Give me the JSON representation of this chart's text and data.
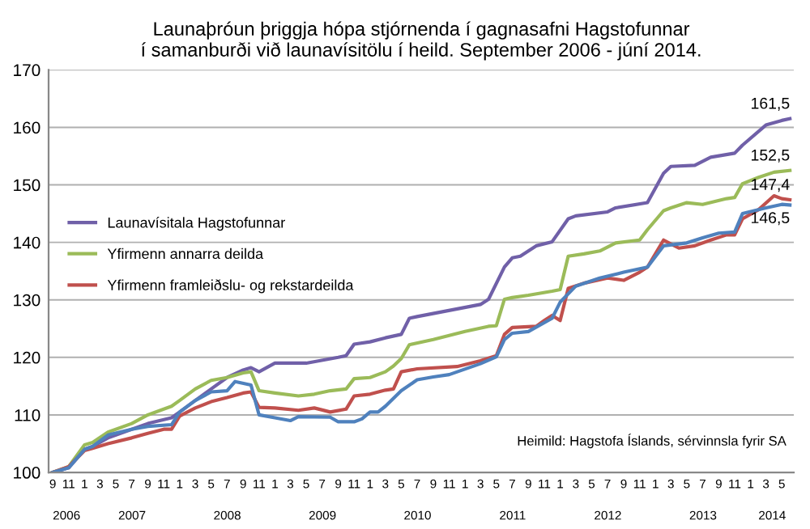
{
  "chart_data": {
    "type": "line",
    "title": "Launaþróun þriggja hópa stjórnenda í gagnasafni Hagstofunnar\ní samanburði við launavísitölu í heild. September 2006 - júní 2014.",
    "xlim": [
      "2006-08-16",
      "2014-06-16"
    ],
    "xticks": [
      {
        "value": "2006-09",
        "label": "9"
      },
      {
        "value": "2006-11",
        "label": "11"
      },
      {
        "value": "2007-01",
        "label": "1"
      },
      {
        "value": "2007-03",
        "label": "3"
      },
      {
        "value": "2007-05",
        "label": "5"
      },
      {
        "value": "2007-07",
        "label": "7"
      },
      {
        "value": "2007-09",
        "label": "9"
      },
      {
        "value": "2007-11",
        "label": "11"
      },
      {
        "value": "2008-01",
        "label": "1"
      },
      {
        "value": "2008-03",
        "label": "3"
      },
      {
        "value": "2008-05",
        "label": "5"
      },
      {
        "value": "2008-07",
        "label": "7"
      },
      {
        "value": "2008-09",
        "label": "9"
      },
      {
        "value": "2008-11",
        "label": "11"
      },
      {
        "value": "2009-01",
        "label": "1"
      },
      {
        "value": "2009-03",
        "label": "3"
      },
      {
        "value": "2009-05",
        "label": "5"
      },
      {
        "value": "2009-07",
        "label": "7"
      },
      {
        "value": "2009-09",
        "label": "9"
      },
      {
        "value": "2009-11",
        "label": "11"
      },
      {
        "value": "2010-01",
        "label": "1"
      },
      {
        "value": "2010-03",
        "label": "3"
      },
      {
        "value": "2010-05",
        "label": "5"
      },
      {
        "value": "2010-07",
        "label": "7"
      },
      {
        "value": "2010-09",
        "label": "9"
      },
      {
        "value": "2010-11",
        "label": "11"
      },
      {
        "value": "2011-01",
        "label": "1"
      },
      {
        "value": "2011-03",
        "label": "3"
      },
      {
        "value": "2011-05",
        "label": "5"
      },
      {
        "value": "2011-07",
        "label": "7"
      },
      {
        "value": "2011-09",
        "label": "9"
      },
      {
        "value": "2011-11",
        "label": "11"
      },
      {
        "value": "2012-01",
        "label": "1"
      },
      {
        "value": "2012-03",
        "label": "3"
      },
      {
        "value": "2012-05",
        "label": "5"
      },
      {
        "value": "2012-07",
        "label": "7"
      },
      {
        "value": "2012-09",
        "label": "9"
      },
      {
        "value": "2012-11",
        "label": "11"
      },
      {
        "value": "2013-01",
        "label": "1"
      },
      {
        "value": "2013-03",
        "label": "3"
      },
      {
        "value": "2013-05",
        "label": "5"
      },
      {
        "value": "2013-07",
        "label": "7"
      },
      {
        "value": "2013-09",
        "label": "9"
      },
      {
        "value": "2013-11",
        "label": "11"
      },
      {
        "value": "2014-01",
        "label": "1"
      },
      {
        "value": "2014-03",
        "label": "3"
      },
      {
        "value": "2014-05",
        "label": "5"
      }
    ],
    "ylim": [
      100,
      170
    ],
    "yticks": [
      100,
      110,
      120,
      130,
      140,
      150,
      160,
      170
    ],
    "grid": "y",
    "legend": "left",
    "series": [
      {
        "name": "Launavísitala Hagstofunnar",
        "color": "#7060a8",
        "x": [
          "2006-09",
          "2006-11",
          "2007-01",
          "2007-02",
          "2007-04",
          "2007-07",
          "2007-09",
          "2007-12",
          "2008-01",
          "2008-03",
          "2008-05",
          "2008-07",
          "2008-09",
          "2008-10",
          "2008-11",
          "2009-01",
          "2009-05",
          "2009-09",
          "2009-10",
          "2009-11",
          "2010-01",
          "2010-03",
          "2010-05",
          "2010-06",
          "2010-07",
          "2011-03",
          "2011-04",
          "2011-06",
          "2011-07",
          "2011-08",
          "2011-10",
          "2011-12",
          "2012-02",
          "2012-03",
          "2012-07",
          "2012-08",
          "2012-12",
          "2013-02",
          "2013-03",
          "2013-06",
          "2013-08",
          "2013-11",
          "2013-12",
          "2014-03",
          "2014-05",
          "2014-06"
        ],
        "values": [
          100,
          100.8,
          104,
          104.5,
          106,
          107.5,
          108.5,
          109.5,
          110.5,
          112.5,
          114.5,
          116.5,
          117.8,
          118.2,
          117.5,
          119,
          119,
          120,
          120.3,
          122.3,
          122.7,
          123.4,
          124,
          126.8,
          127.1,
          129.2,
          130.1,
          135.7,
          137.3,
          137.6,
          139.4,
          140.1,
          144.1,
          144.6,
          145.3,
          146,
          146.9,
          152,
          153.2,
          153.4,
          154.8,
          155.5,
          156.9,
          160.4,
          161.2,
          161.5
        ]
      },
      {
        "name": "Yfirmenn annarra deilda",
        "color": "#9bbb59",
        "x": [
          "2006-09",
          "2006-11",
          "2007-01",
          "2007-02",
          "2007-04",
          "2007-07",
          "2007-09",
          "2007-12",
          "2008-01",
          "2008-03",
          "2008-05",
          "2008-07",
          "2008-09",
          "2008-10",
          "2008-11",
          "2009-01",
          "2009-04",
          "2009-06",
          "2009-08",
          "2009-10",
          "2009-11",
          "2010-01",
          "2010-03",
          "2010-04",
          "2010-05",
          "2010-06",
          "2010-09",
          "2011-01",
          "2011-04",
          "2011-05",
          "2011-06",
          "2011-07",
          "2011-09",
          "2011-12",
          "2012-01",
          "2012-02",
          "2012-04",
          "2012-06",
          "2012-08",
          "2012-11",
          "2012-12",
          "2013-02",
          "2013-03",
          "2013-05",
          "2013-07",
          "2013-10",
          "2013-11",
          "2013-12",
          "2014-02",
          "2014-04",
          "2014-06"
        ],
        "values": [
          100,
          101,
          104.8,
          105.2,
          107,
          108.5,
          110,
          111.5,
          112.5,
          114.5,
          116,
          116.5,
          117.3,
          117.5,
          114.2,
          113.8,
          113.3,
          113.6,
          114.2,
          114.5,
          116.3,
          116.5,
          117.5,
          118.5,
          119.8,
          122.2,
          123.1,
          124.5,
          125.4,
          125.5,
          130.1,
          130.4,
          130.8,
          131.5,
          131.8,
          137.6,
          138,
          138.5,
          139.9,
          140.4,
          142.2,
          145.5,
          146,
          146.9,
          146.6,
          147.6,
          147.8,
          150.2,
          151.3,
          152.2,
          152.5
        ]
      },
      {
        "name": "Yfirmenn framleiðslu- og rekstardeilda",
        "color": "#c0504d",
        "x": [
          "2006-09",
          "2006-11",
          "2007-01",
          "2007-02",
          "2007-04",
          "2007-07",
          "2007-09",
          "2007-11",
          "2007-12",
          "2008-01",
          "2008-03",
          "2008-05",
          "2008-07",
          "2008-09",
          "2008-10",
          "2008-11",
          "2009-01",
          "2009-04",
          "2009-06",
          "2009-08",
          "2009-10",
          "2009-11",
          "2010-01",
          "2010-03",
          "2010-04",
          "2010-05",
          "2010-07",
          "2010-12",
          "2011-03",
          "2011-05",
          "2011-06",
          "2011-07",
          "2011-10",
          "2011-11",
          "2011-12",
          "2012-01",
          "2012-02",
          "2012-04",
          "2012-07",
          "2012-09",
          "2012-11",
          "2012-12",
          "2013-02",
          "2013-04",
          "2013-06",
          "2013-08",
          "2013-10",
          "2013-11",
          "2013-12",
          "2014-02",
          "2014-04",
          "2014-05",
          "2014-06"
        ],
        "values": [
          100,
          101,
          103.8,
          104.2,
          105,
          106,
          106.8,
          107.5,
          107.5,
          109.8,
          111.2,
          112.3,
          113,
          113.8,
          114,
          111.3,
          111.2,
          110.8,
          111.2,
          110.5,
          111,
          113.3,
          113.6,
          114.3,
          114.5,
          117.5,
          118,
          118.4,
          119.4,
          120.3,
          124,
          125.2,
          125.4,
          126.4,
          127.3,
          126.4,
          132,
          132.9,
          133.8,
          133.4,
          134.8,
          135.7,
          140.4,
          139,
          139.4,
          140.4,
          141.3,
          141.3,
          144.1,
          145.7,
          148.1,
          147.6,
          147.4
        ]
      },
      {
        "color": "#4f81bd",
        "x": [
          "2006-09",
          "2006-11",
          "2007-01",
          "2007-02",
          "2007-04",
          "2007-07",
          "2007-09",
          "2007-12",
          "2008-01",
          "2008-03",
          "2008-05",
          "2008-07",
          "2008-08",
          "2008-10",
          "2008-11",
          "2009-01",
          "2009-03",
          "2009-04",
          "2009-08",
          "2009-09",
          "2009-11",
          "2009-12",
          "2010-01",
          "2010-02",
          "2010-03",
          "2010-05",
          "2010-07",
          "2010-09",
          "2010-11",
          "2011-03",
          "2011-05",
          "2011-06",
          "2011-07",
          "2011-09",
          "2011-12",
          "2012-01",
          "2012-03",
          "2012-06",
          "2012-09",
          "2012-12",
          "2013-02",
          "2013-05",
          "2013-07",
          "2013-09",
          "2013-11",
          "2013-12",
          "2014-03",
          "2014-05",
          "2014-06"
        ],
        "values": [
          100,
          100.8,
          104,
          104.5,
          106.5,
          107.5,
          108,
          108.3,
          110.5,
          112.5,
          114,
          114.2,
          115.8,
          115.2,
          110,
          109.5,
          109,
          109.7,
          109.6,
          108.8,
          108.8,
          109.3,
          110.5,
          110.5,
          111.5,
          114.2,
          116.1,
          116.6,
          117,
          118.9,
          120.1,
          123.1,
          124.2,
          124.5,
          126.8,
          129.6,
          132.4,
          133.8,
          134.8,
          135.7,
          139.4,
          139.9,
          140.8,
          141.6,
          141.8,
          145,
          146,
          146.6,
          146.5
        ]
      }
    ],
    "annotations": [
      {
        "text": "161,5",
        "x": "2014-06",
        "y": 161.5
      },
      {
        "text": "152,5",
        "x": "2014-06",
        "y": 152.5
      },
      {
        "text": "147,4",
        "x": "2014-06",
        "y": 147.4
      },
      {
        "text": "146,5",
        "x": "2014-06",
        "y": 146.5
      },
      "Heimild: Hagstofa Íslands, sérvinnsla fyrir SA",
      "2006",
      "2007",
      "2008",
      "2009",
      "2010",
      "2011",
      "2012",
      "2013",
      "2014"
    ]
  }
}
